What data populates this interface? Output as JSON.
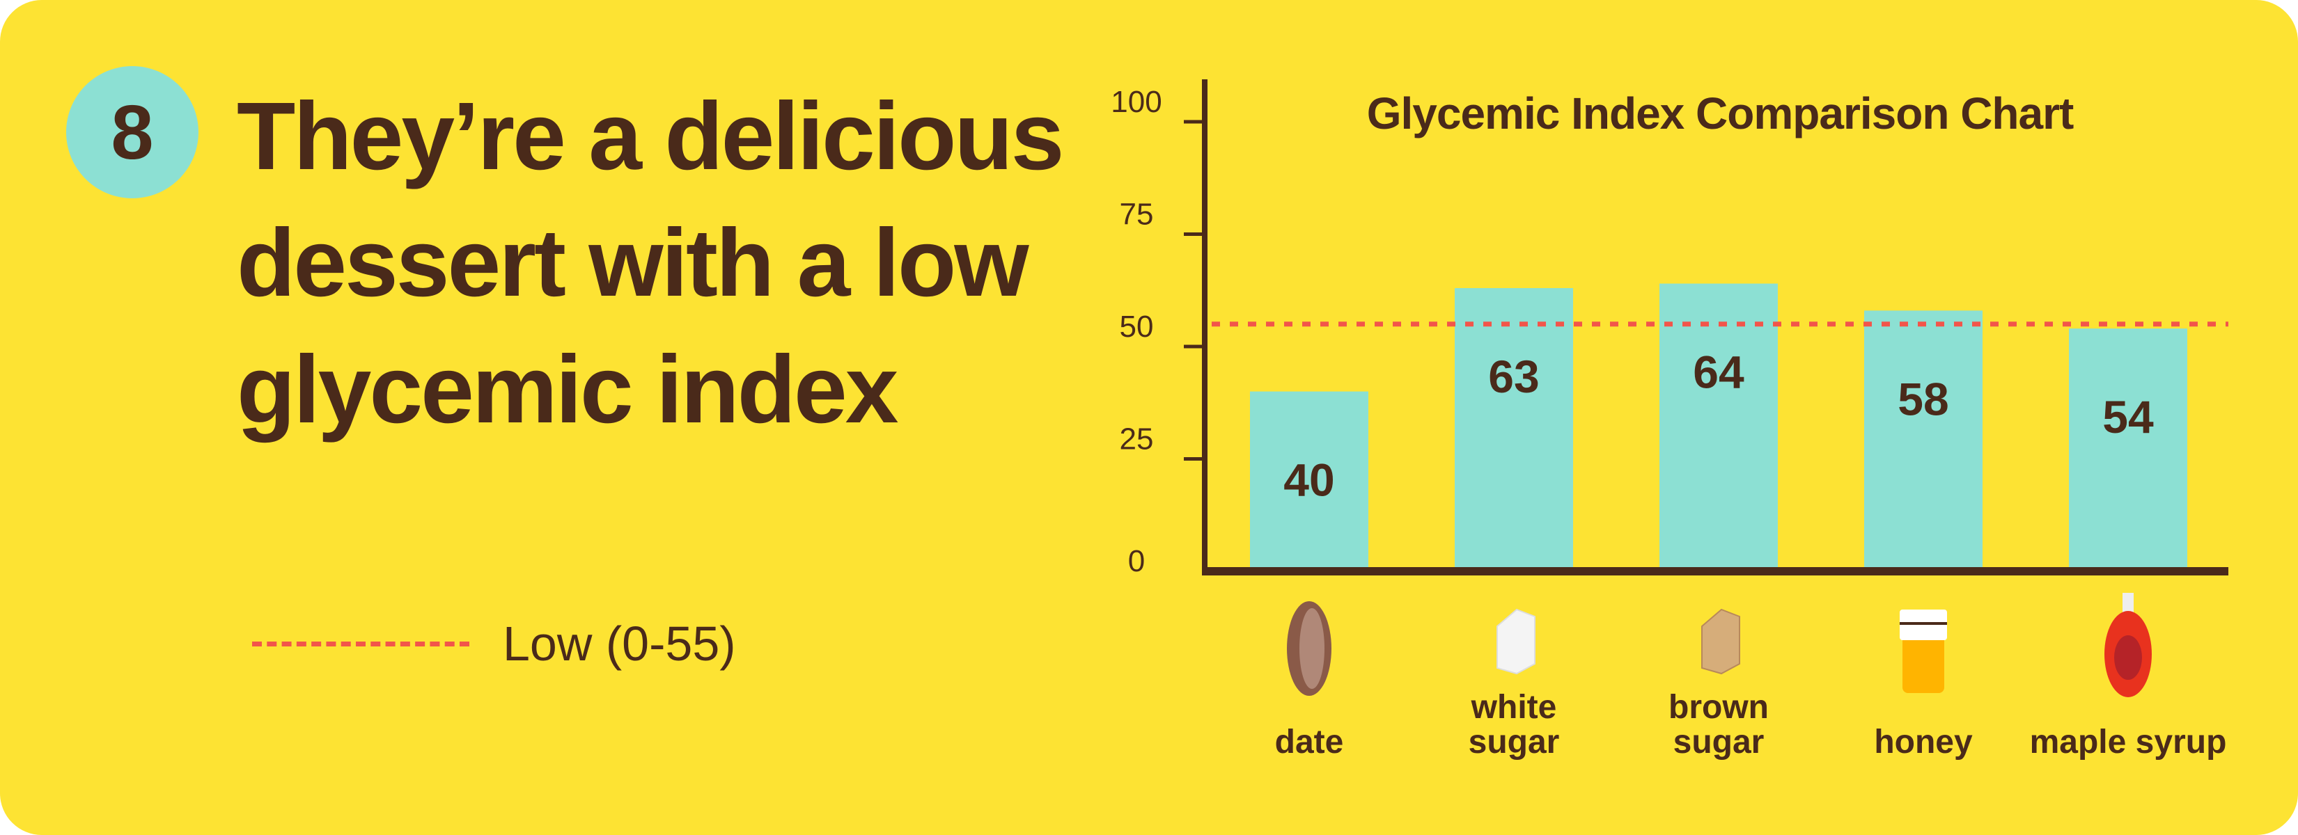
{
  "badge": {
    "number": "8"
  },
  "heading": {
    "lines": [
      "They’re a delicious",
      "dessert with a low",
      "glycemic index"
    ]
  },
  "legend": {
    "label": "Low (0-55)",
    "color": "#f2554a"
  },
  "colors": {
    "background": "#fde333",
    "bar": "#8ce0d3",
    "text": "#4a2a1a",
    "threshold": "#f2554a"
  },
  "chart_data": {
    "type": "bar",
    "title": "Glycemic Index Comparison Chart",
    "categories": [
      {
        "lines": [
          "date"
        ],
        "icon": "date-fruit-icon"
      },
      {
        "lines": [
          "white",
          "sugar"
        ],
        "icon": "white-sugar-cube-icon"
      },
      {
        "lines": [
          "brown",
          "sugar"
        ],
        "icon": "brown-sugar-cube-icon"
      },
      {
        "lines": [
          "honey"
        ],
        "icon": "honey-jar-icon"
      },
      {
        "lines": [
          "maple syrup"
        ],
        "icon": "maple-syrup-bottle-icon"
      }
    ],
    "values": [
      40,
      63,
      64,
      58,
      54
    ],
    "data_labels": [
      "40",
      "63",
      "64",
      "58",
      "54"
    ],
    "ylim": [
      0,
      100
    ],
    "yticks": [
      "0",
      "25",
      "50",
      "75",
      "100"
    ],
    "threshold": {
      "value": 55,
      "label": "Low (0-55)",
      "style": "dashed"
    },
    "grid": false,
    "legend_position": "left"
  }
}
